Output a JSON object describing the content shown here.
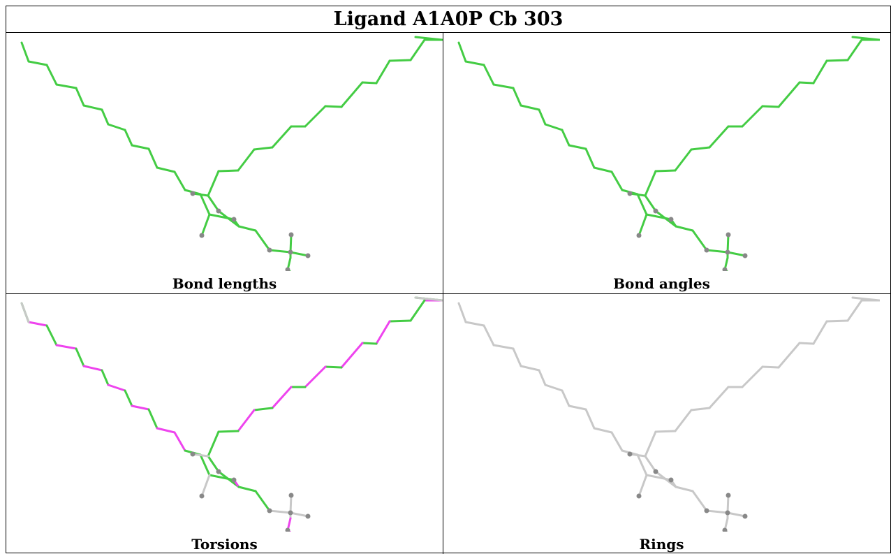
{
  "header": {
    "title": "Ligand A1A0P Cb 303"
  },
  "panels": [
    {
      "caption": "Bond lengths",
      "scheme": "all-green"
    },
    {
      "caption": "Bond angles",
      "scheme": "all-green"
    },
    {
      "caption": "Torsions",
      "scheme": "mixed-green-magenta"
    },
    {
      "caption": "Rings",
      "scheme": "all-grey"
    }
  ],
  "colors": {
    "ok_bond": "#44cc44",
    "outlier_bond": "#ee44ee",
    "neutral_bond": "#c8c8c8",
    "atom": "#888888",
    "border": "#000000"
  }
}
